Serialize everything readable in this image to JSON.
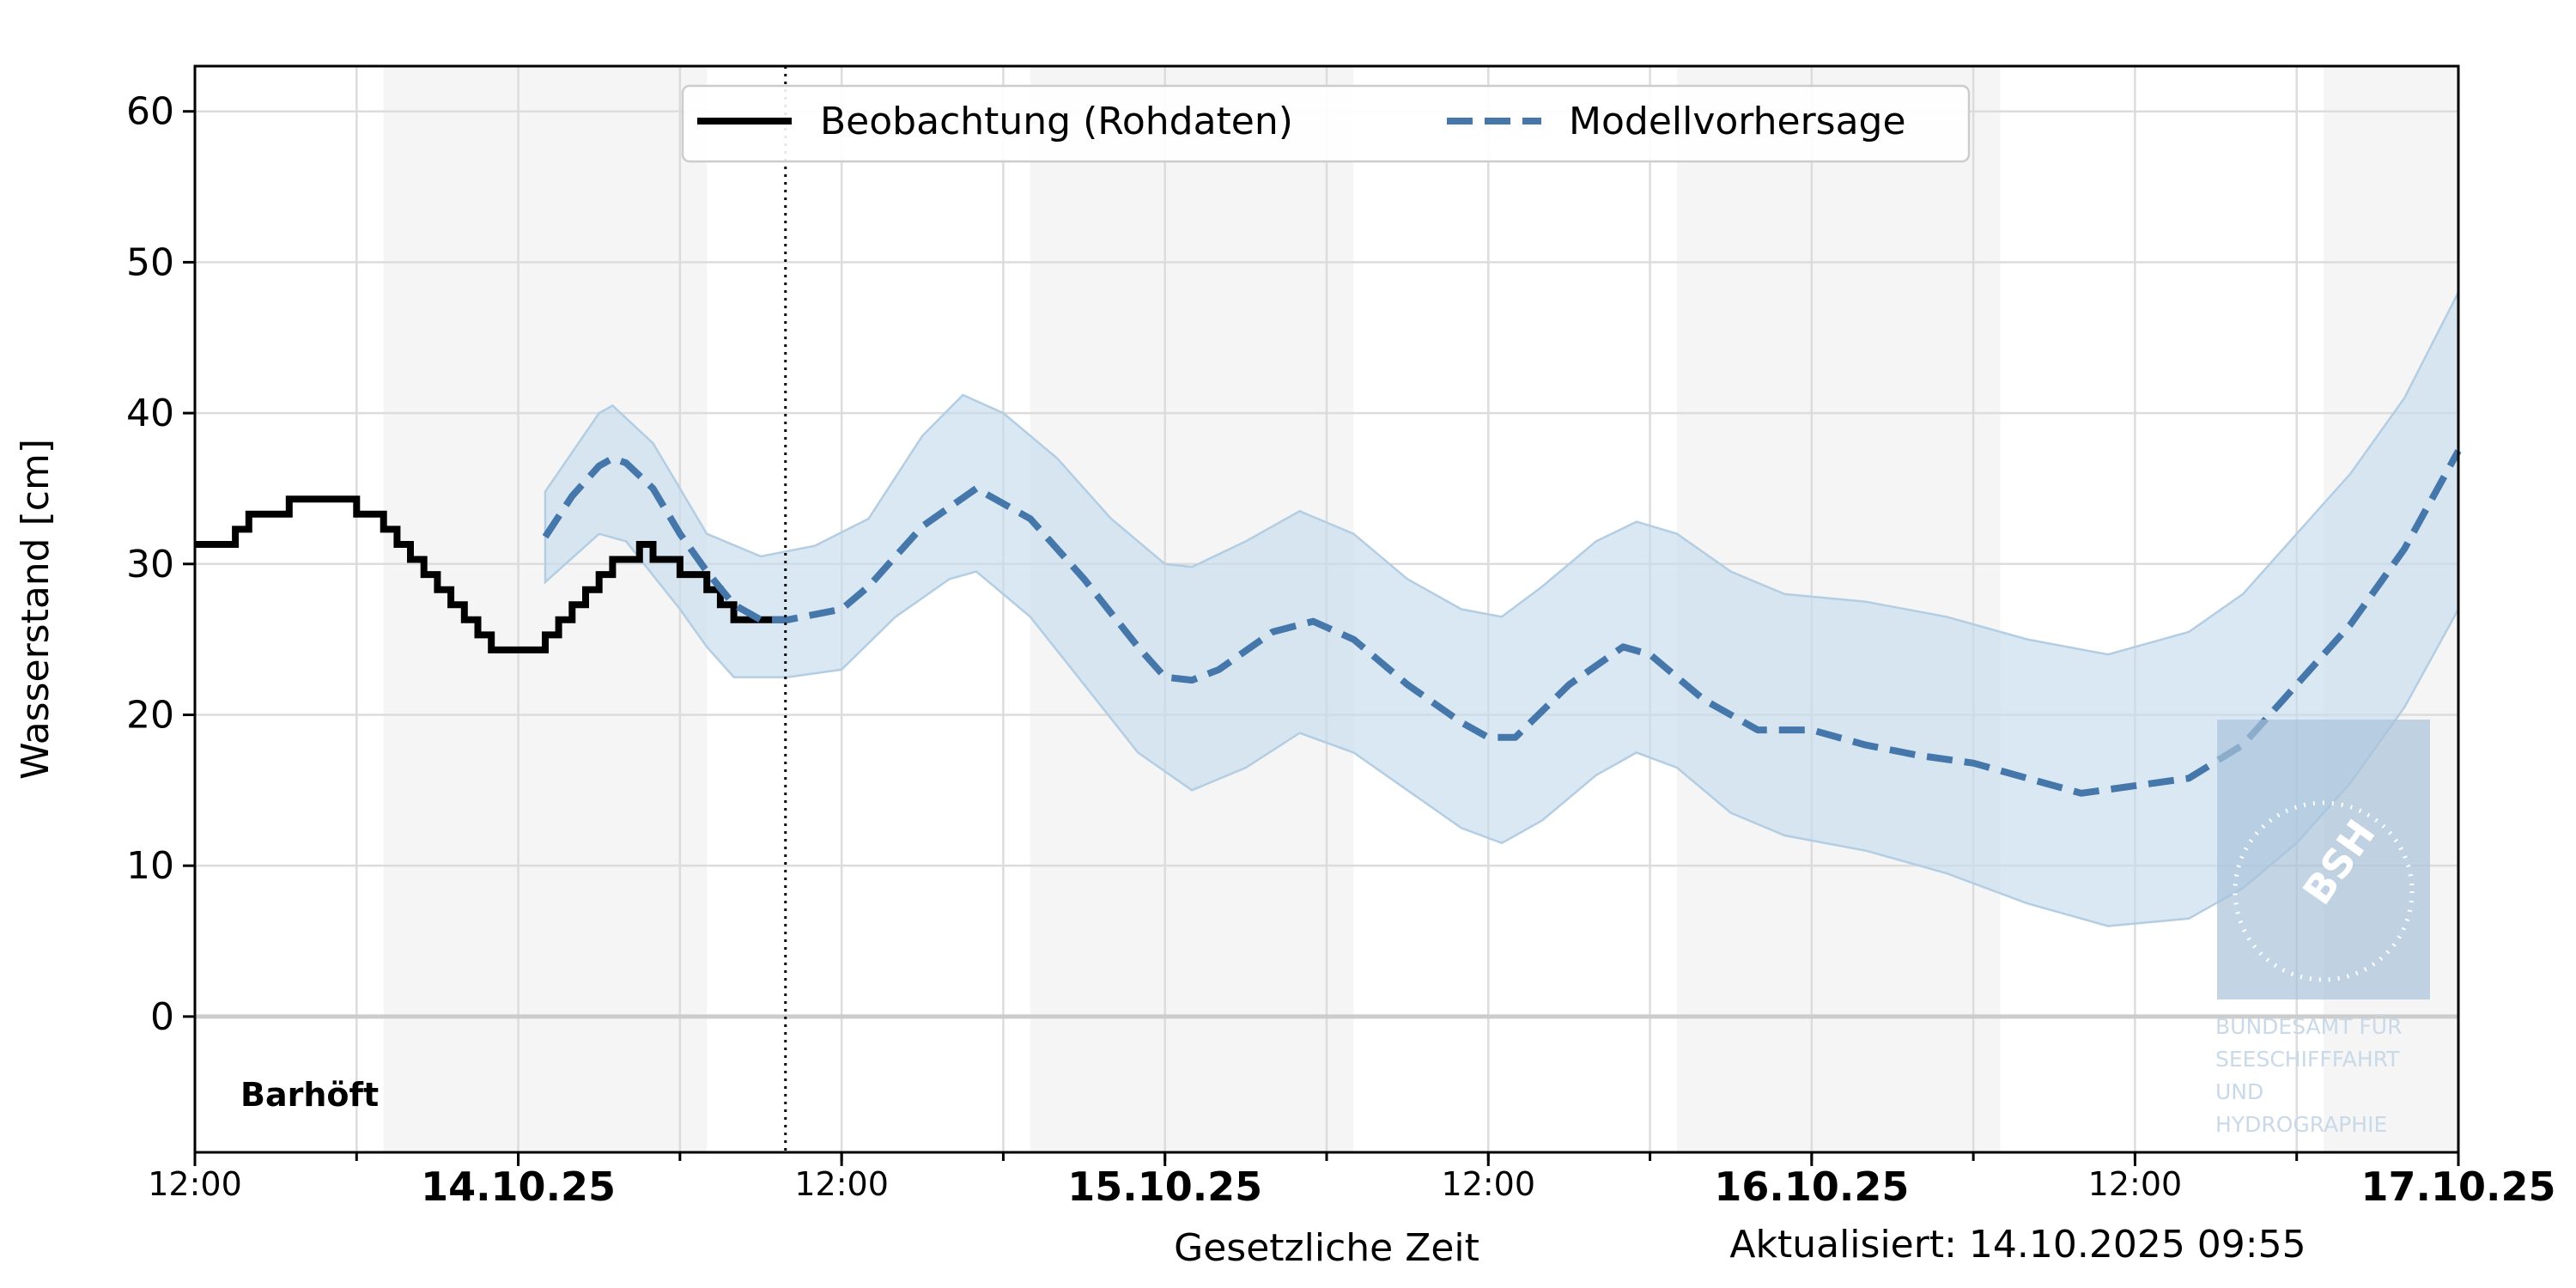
{
  "chart_data": {
    "type": "line",
    "station": "Barhöft",
    "ylabel": "Wasserstand [cm]",
    "xlabel": "Gesetzliche Zeit",
    "updated": "Aktualisiert: 14.10.2025 09:55",
    "ylim": [
      -9,
      63
    ],
    "xlim": [
      "2025-10-13 12:00",
      "2025-10-17 00:00"
    ],
    "yticks": [
      0,
      10,
      20,
      30,
      40,
      50,
      60
    ],
    "xticks": [
      {
        "x": "2025-10-13 12:00",
        "label": "12:00",
        "bold": false
      },
      {
        "x": "2025-10-14 00:00",
        "label": "14.10.25",
        "bold": true
      },
      {
        "x": "2025-10-14 12:00",
        "label": "12:00",
        "bold": false
      },
      {
        "x": "2025-10-15 00:00",
        "label": "15.10.25",
        "bold": true
      },
      {
        "x": "2025-10-15 12:00",
        "label": "12:00",
        "bold": false
      },
      {
        "x": "2025-10-16 00:00",
        "label": "16.10.25",
        "bold": true
      },
      {
        "x": "2025-10-16 12:00",
        "label": "12:00",
        "bold": false
      },
      {
        "x": "2025-10-17 00:00",
        "label": "17.10.25",
        "bold": true
      }
    ],
    "grid": true,
    "night_bands": [
      [
        "2025-10-13 19:00",
        "2025-10-14 07:00"
      ],
      [
        "2025-10-14 19:00",
        "2025-10-15 07:00"
      ],
      [
        "2025-10-15 19:00",
        "2025-10-16 07:00"
      ],
      [
        "2025-10-16 19:00",
        "2025-10-17 00:00"
      ]
    ],
    "now_marker": "2025-10-14 09:55",
    "legend": {
      "placement": "top-center",
      "entries": [
        "Beobachtung (Rohdaten)",
        "Modellvorhersage"
      ]
    },
    "colors": {
      "observation": "#000000",
      "forecast": "#4677ab",
      "band": "#c6dcee",
      "night": "#f5f5f5",
      "grid": "#dcdcdc"
    },
    "series": [
      {
        "name": "Beobachtung (Rohdaten)",
        "style": "step",
        "points": [
          [
            "2025-10-13 12:00",
            31.3
          ],
          [
            "2025-10-13 13:30",
            32.3
          ],
          [
            "2025-10-13 14:00",
            33.3
          ],
          [
            "2025-10-13 15:30",
            34.3
          ],
          [
            "2025-10-13 18:00",
            33.3
          ],
          [
            "2025-10-13 19:00",
            32.3
          ],
          [
            "2025-10-13 19:30",
            31.3
          ],
          [
            "2025-10-13 20:00",
            30.3
          ],
          [
            "2025-10-13 20:30",
            29.3
          ],
          [
            "2025-10-13 21:00",
            28.3
          ],
          [
            "2025-10-13 21:30",
            27.3
          ],
          [
            "2025-10-13 22:00",
            26.3
          ],
          [
            "2025-10-13 22:30",
            25.3
          ],
          [
            "2025-10-13 23:00",
            24.3
          ],
          [
            "2025-10-14 01:00",
            25.3
          ],
          [
            "2025-10-14 01:30",
            26.3
          ],
          [
            "2025-10-14 02:00",
            27.3
          ],
          [
            "2025-10-14 02:30",
            28.3
          ],
          [
            "2025-10-14 03:00",
            29.3
          ],
          [
            "2025-10-14 03:30",
            30.3
          ],
          [
            "2025-10-14 04:30",
            31.3
          ],
          [
            "2025-10-14 05:00",
            30.3
          ],
          [
            "2025-10-14 06:00",
            29.3
          ],
          [
            "2025-10-14 07:00",
            28.3
          ],
          [
            "2025-10-14 07:30",
            27.3
          ],
          [
            "2025-10-14 08:00",
            26.3
          ],
          [
            "2025-10-14 09:55",
            26.3
          ]
        ]
      },
      {
        "name": "Modellvorhersage",
        "style": "dashed",
        "points": [
          [
            "2025-10-14 01:00",
            31.8
          ],
          [
            "2025-10-14 02:00",
            34.5
          ],
          [
            "2025-10-14 03:00",
            36.5
          ],
          [
            "2025-10-14 03:30",
            37.0
          ],
          [
            "2025-10-14 04:00",
            36.7
          ],
          [
            "2025-10-14 05:00",
            35.0
          ],
          [
            "2025-10-14 06:00",
            32.0
          ],
          [
            "2025-10-14 07:00",
            29.5
          ],
          [
            "2025-10-14 08:00",
            27.3
          ],
          [
            "2025-10-14 09:00",
            26.3
          ],
          [
            "2025-10-14 10:00",
            26.3
          ],
          [
            "2025-10-14 12:00",
            27.0
          ],
          [
            "2025-10-14 13:00",
            28.5
          ],
          [
            "2025-10-14 15:00",
            32.5
          ],
          [
            "2025-10-14 17:00",
            35.0
          ],
          [
            "2025-10-14 19:00",
            33.0
          ],
          [
            "2025-10-14 21:00",
            29.0
          ],
          [
            "2025-10-14 23:00",
            24.5
          ],
          [
            "2025-10-15 00:00",
            22.5
          ],
          [
            "2025-10-15 01:00",
            22.3
          ],
          [
            "2025-10-15 02:00",
            23.0
          ],
          [
            "2025-10-15 04:00",
            25.5
          ],
          [
            "2025-10-15 05:30",
            26.2
          ],
          [
            "2025-10-15 07:00",
            25.0
          ],
          [
            "2025-10-15 09:00",
            22.0
          ],
          [
            "2025-10-15 11:00",
            19.5
          ],
          [
            "2025-10-15 12:00",
            18.5
          ],
          [
            "2025-10-15 13:00",
            18.5
          ],
          [
            "2025-10-15 15:00",
            22.0
          ],
          [
            "2025-10-15 17:00",
            24.5
          ],
          [
            "2025-10-15 18:00",
            24.0
          ],
          [
            "2025-10-15 20:00",
            21.0
          ],
          [
            "2025-10-15 22:00",
            19.0
          ],
          [
            "2025-10-16 00:00",
            19.0
          ],
          [
            "2025-10-16 02:00",
            18.0
          ],
          [
            "2025-10-16 04:00",
            17.3
          ],
          [
            "2025-10-16 06:00",
            16.8
          ],
          [
            "2025-10-16 08:00",
            15.8
          ],
          [
            "2025-10-16 10:00",
            14.8
          ],
          [
            "2025-10-16 12:00",
            15.3
          ],
          [
            "2025-10-16 14:00",
            15.8
          ],
          [
            "2025-10-16 16:00",
            18.0
          ],
          [
            "2025-10-16 18:00",
            22.0
          ],
          [
            "2025-10-16 20:00",
            26.0
          ],
          [
            "2025-10-16 22:00",
            31.0
          ],
          [
            "2025-10-17 00:00",
            37.5
          ]
        ],
        "range_upper": [
          [
            "2025-10-14 01:00",
            34.8
          ],
          [
            "2025-10-14 03:00",
            40.0
          ],
          [
            "2025-10-14 03:30",
            40.5
          ],
          [
            "2025-10-14 05:00",
            38.0
          ],
          [
            "2025-10-14 06:00",
            35.0
          ],
          [
            "2025-10-14 07:00",
            32.0
          ],
          [
            "2025-10-14 09:00",
            30.5
          ],
          [
            "2025-10-14 11:00",
            31.2
          ],
          [
            "2025-10-14 13:00",
            33.0
          ],
          [
            "2025-10-14 15:00",
            38.5
          ],
          [
            "2025-10-14 16:30",
            41.2
          ],
          [
            "2025-10-14 18:00",
            40.0
          ],
          [
            "2025-10-14 20:00",
            37.0
          ],
          [
            "2025-10-14 22:00",
            33.0
          ],
          [
            "2025-10-15 00:00",
            30.0
          ],
          [
            "2025-10-15 01:00",
            29.8
          ],
          [
            "2025-10-15 03:00",
            31.5
          ],
          [
            "2025-10-15 05:00",
            33.5
          ],
          [
            "2025-10-15 07:00",
            32.0
          ],
          [
            "2025-10-15 09:00",
            29.0
          ],
          [
            "2025-10-15 11:00",
            27.0
          ],
          [
            "2025-10-15 12:30",
            26.5
          ],
          [
            "2025-10-15 14:00",
            28.5
          ],
          [
            "2025-10-15 16:00",
            31.5
          ],
          [
            "2025-10-15 17:30",
            32.8
          ],
          [
            "2025-10-15 19:00",
            32.0
          ],
          [
            "2025-10-15 21:00",
            29.5
          ],
          [
            "2025-10-15 23:00",
            28.0
          ],
          [
            "2025-10-16 02:00",
            27.5
          ],
          [
            "2025-10-16 05:00",
            26.5
          ],
          [
            "2025-10-16 08:00",
            25.0
          ],
          [
            "2025-10-16 11:00",
            24.0
          ],
          [
            "2025-10-16 14:00",
            25.5
          ],
          [
            "2025-10-16 16:00",
            28.0
          ],
          [
            "2025-10-16 18:00",
            32.0
          ],
          [
            "2025-10-16 20:00",
            36.0
          ],
          [
            "2025-10-16 22:00",
            41.0
          ],
          [
            "2025-10-17 00:00",
            48.0
          ]
        ],
        "range_lower": [
          [
            "2025-10-14 01:00",
            28.8
          ],
          [
            "2025-10-14 03:00",
            32.0
          ],
          [
            "2025-10-14 04:00",
            31.5
          ],
          [
            "2025-10-14 06:00",
            27.0
          ],
          [
            "2025-10-14 07:00",
            24.5
          ],
          [
            "2025-10-14 08:00",
            22.5
          ],
          [
            "2025-10-14 10:00",
            22.5
          ],
          [
            "2025-10-14 12:00",
            23.0
          ],
          [
            "2025-10-14 14:00",
            26.5
          ],
          [
            "2025-10-14 16:00",
            29.0
          ],
          [
            "2025-10-14 17:00",
            29.5
          ],
          [
            "2025-10-14 19:00",
            26.5
          ],
          [
            "2025-10-14 21:00",
            22.0
          ],
          [
            "2025-10-14 23:00",
            17.5
          ],
          [
            "2025-10-15 01:00",
            15.0
          ],
          [
            "2025-10-15 03:00",
            16.5
          ],
          [
            "2025-10-15 05:00",
            18.8
          ],
          [
            "2025-10-15 07:00",
            17.5
          ],
          [
            "2025-10-15 09:00",
            15.0
          ],
          [
            "2025-10-15 11:00",
            12.5
          ],
          [
            "2025-10-15 12:30",
            11.5
          ],
          [
            "2025-10-15 14:00",
            13.0
          ],
          [
            "2025-10-15 16:00",
            16.0
          ],
          [
            "2025-10-15 17:30",
            17.5
          ],
          [
            "2025-10-15 19:00",
            16.5
          ],
          [
            "2025-10-15 21:00",
            13.5
          ],
          [
            "2025-10-15 23:00",
            12.0
          ],
          [
            "2025-10-16 02:00",
            11.0
          ],
          [
            "2025-10-16 05:00",
            9.5
          ],
          [
            "2025-10-16 08:00",
            7.5
          ],
          [
            "2025-10-16 11:00",
            6.0
          ],
          [
            "2025-10-16 14:00",
            6.5
          ],
          [
            "2025-10-16 16:00",
            8.5
          ],
          [
            "2025-10-16 18:00",
            11.5
          ],
          [
            "2025-10-16 20:00",
            15.5
          ],
          [
            "2025-10-16 22:00",
            20.5
          ],
          [
            "2025-10-17 00:00",
            27.0
          ]
        ]
      }
    ]
  },
  "watermark": {
    "logo_text": "BSH",
    "lines": [
      "BUNDESAMT FÜR",
      "SEESCHIFFFAHRT",
      "UND",
      "HYDROGRAPHIE"
    ]
  }
}
